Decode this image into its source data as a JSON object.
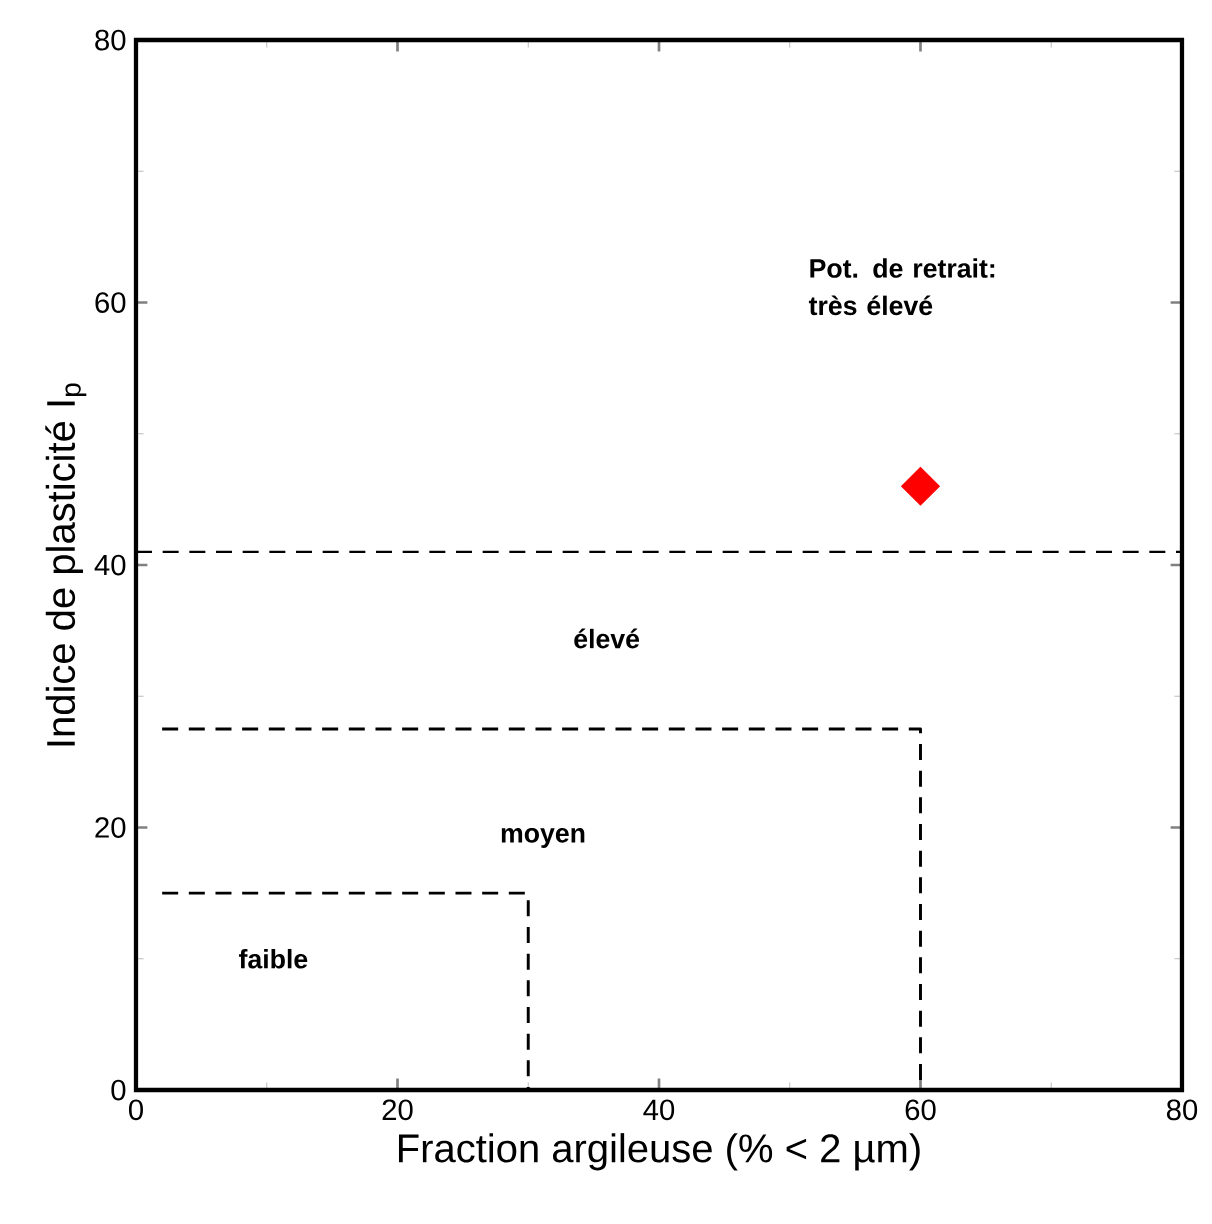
{
  "chart_data": {
    "type": "scatter",
    "xlabel": "Fraction argileuse (% < 2 µm)",
    "ylabel": "Indice de plasticité I$_{p}$",
    "xlim": [
      0,
      80
    ],
    "ylim": [
      0,
      80
    ],
    "xticks": [
      0,
      20,
      40,
      60,
      80
    ],
    "yticks": [
      0,
      20,
      40,
      60,
      80
    ],
    "grid": false,
    "series": [
      {
        "type": "line",
        "color": "#000000",
        "line_style": "dashed",
        "marker": "none",
        "x": [
          2,
          30,
          30
        ],
        "values": [
          15,
          15,
          0
        ]
      },
      {
        "type": "line",
        "color": "#000000",
        "line_style": "dashed",
        "marker": "none",
        "x": [
          2,
          60,
          60
        ],
        "values": [
          27.5,
          27.5,
          0
        ]
      },
      {
        "color": "#ff0000",
        "marker": "diamond",
        "x": [
          60
        ],
        "values": [
          46
        ]
      }
    ],
    "ref_lines": [
      {
        "axis": "y",
        "value": 41,
        "line_style": "dashed",
        "color": "#000000"
      }
    ],
    "annotations": [
      "faible",
      "moyen",
      "élevé",
      "Pot. de retrait: très élevé"
    ]
  }
}
